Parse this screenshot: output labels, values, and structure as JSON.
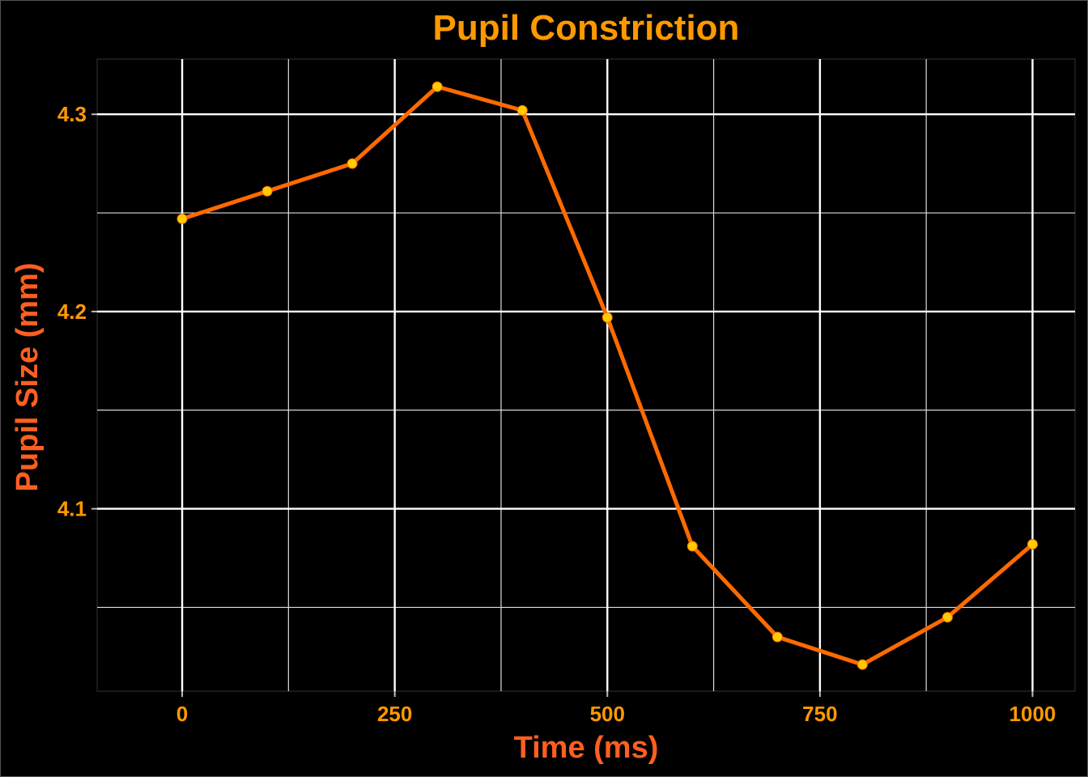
{
  "colors": {
    "background": "#000000",
    "panel_border": "#333333",
    "grid_major": "#FFFFFF",
    "grid_minor": "#DDDDDD",
    "title": "#FF9900",
    "axis_title": "#FF5F1F",
    "tick_label": "#FF9900",
    "line": "#FF6A00",
    "marker": "#FFCC00"
  },
  "chart_data": {
    "type": "line",
    "title": "Pupil Constriction",
    "xlabel": "Time (ms)",
    "ylabel": "Pupil Size (mm)",
    "x": [
      0,
      100,
      200,
      300,
      400,
      500,
      600,
      700,
      800,
      900,
      1000
    ],
    "series": [
      {
        "values": [
          4.247,
          4.261,
          4.275,
          4.314,
          4.302,
          4.197,
          4.081,
          4.035,
          4.021,
          4.045,
          4.082
        ]
      }
    ],
    "xlim": [
      -100,
      1050
    ],
    "ylim": [
      4.0075,
      4.328
    ],
    "x_ticks": [
      0,
      250,
      500,
      750,
      1000
    ],
    "x_tick_labels": [
      "0",
      "250",
      "500",
      "750",
      "1000"
    ],
    "y_ticks": [
      4.1,
      4.2,
      4.3
    ],
    "y_tick_labels": [
      "4.1",
      "4.2",
      "4.3"
    ],
    "x_minor_ticks": [
      125,
      375,
      625,
      875
    ],
    "y_minor_ticks": [
      4.05,
      4.15,
      4.25
    ],
    "grid": true,
    "markers": true,
    "legend": "none"
  }
}
